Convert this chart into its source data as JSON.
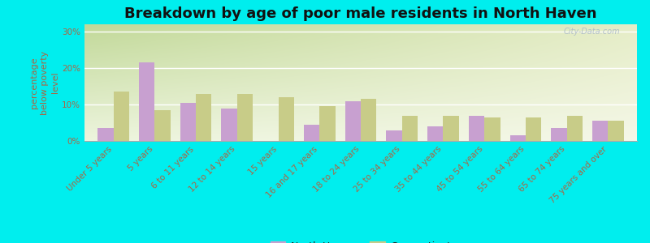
{
  "title": "Breakdown by age of poor male residents in North Haven",
  "categories": [
    "Under 5 years",
    "5 years",
    "6 to 11 years",
    "12 to 14 years",
    "15 years",
    "16 and 17 years",
    "18 to 24 years",
    "25 to 34 years",
    "35 to 44 years",
    "45 to 54 years",
    "55 to 64 years",
    "65 to 74 years",
    "75 years and over"
  ],
  "north_haven": [
    3.5,
    21.5,
    10.5,
    9.0,
    0,
    4.5,
    11.0,
    3.0,
    4.0,
    7.0,
    1.5,
    3.5,
    5.5
  ],
  "connecticut": [
    13.5,
    8.5,
    13.0,
    13.0,
    12.0,
    9.5,
    11.5,
    7.0,
    7.0,
    6.5,
    6.5,
    7.0,
    5.5
  ],
  "north_haven_color": "#c8a0d0",
  "connecticut_color": "#c8cc88",
  "bg_color_topleft": "#c8d8a0",
  "bg_color_topright": "#e8eecc",
  "bg_color_bottom": "#f0f4e0",
  "outer_bg": "#00eeee",
  "ylabel": "percentage\nbelow poverty\nlevel",
  "ylim": [
    0,
    32
  ],
  "yticks": [
    0,
    10,
    20,
    30
  ],
  "ytick_labels": [
    "0%",
    "10%",
    "20%",
    "30%"
  ],
  "title_fontsize": 13,
  "axis_label_fontsize": 8,
  "tick_fontsize": 7.5,
  "legend_fontsize": 9,
  "bar_width": 0.38,
  "watermark": "City-Data.com",
  "tick_color": "#aa6644",
  "label_color": "#aa6644",
  "title_color": "#111111",
  "legend_text_color": "#222222"
}
